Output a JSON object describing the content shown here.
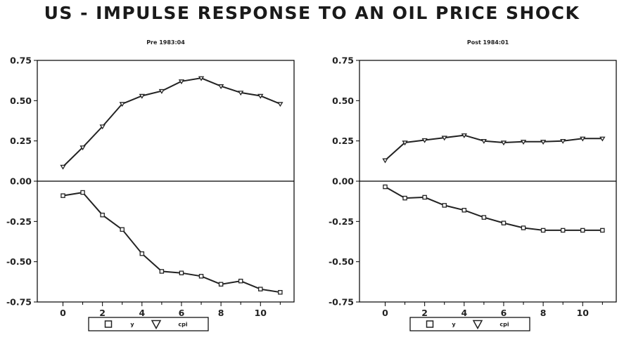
{
  "title": "US - IMPULSE RESPONSE TO AN OIL PRICE SHOCK",
  "chart_data": [
    {
      "type": "line",
      "title": "Pre 1983:04",
      "xlabel": "",
      "ylabel": "",
      "x": [
        0,
        1,
        2,
        3,
        4,
        5,
        6,
        7,
        8,
        9,
        10,
        11
      ],
      "xlim": [
        -1.3,
        11.7
      ],
      "ylim": [
        -0.75,
        0.75
      ],
      "x_ticks": [
        "0",
        "2",
        "4",
        "6",
        "8",
        "10"
      ],
      "y_ticks": [
        "0.75",
        "0.50",
        "0.25",
        "0.00",
        "-0.25",
        "-0.50",
        "-0.75"
      ],
      "zero_line": true,
      "series": [
        {
          "name": "y",
          "marker": "square",
          "values": [
            -0.09,
            -0.07,
            -0.21,
            -0.3,
            -0.45,
            -0.56,
            -0.57,
            -0.59,
            -0.64,
            -0.62,
            -0.67,
            -0.69
          ]
        },
        {
          "name": "cpi",
          "marker": "triangle",
          "values": [
            0.09,
            0.21,
            0.34,
            0.48,
            0.53,
            0.56,
            0.62,
            0.64,
            0.59,
            0.55,
            0.53,
            0.48
          ]
        }
      ],
      "legend": [
        "y",
        "cpi"
      ],
      "legend_position": "bottom-center"
    },
    {
      "type": "line",
      "title": "Post 1984:01",
      "xlabel": "",
      "ylabel": "",
      "x": [
        0,
        1,
        2,
        3,
        4,
        5,
        6,
        7,
        8,
        9,
        10,
        11
      ],
      "xlim": [
        -1.3,
        11.7
      ],
      "ylim": [
        -0.75,
        0.75
      ],
      "x_ticks": [
        "0",
        "2",
        "4",
        "6",
        "8",
        "10"
      ],
      "y_ticks": [
        "0.75",
        "0.50",
        "0.25",
        "0.00",
        "-0.25",
        "-0.50",
        "-0.75"
      ],
      "zero_line": true,
      "series": [
        {
          "name": "y",
          "marker": "square",
          "values": [
            -0.035,
            -0.105,
            -0.1,
            -0.15,
            -0.18,
            -0.225,
            -0.26,
            -0.29,
            -0.305,
            -0.305,
            -0.305,
            -0.305
          ]
        },
        {
          "name": "cpi",
          "marker": "triangle",
          "values": [
            0.13,
            0.24,
            0.255,
            0.27,
            0.285,
            0.25,
            0.24,
            0.245,
            0.245,
            0.25,
            0.265,
            0.265
          ]
        }
      ],
      "legend": [
        "y",
        "cpi"
      ],
      "legend_position": "bottom-center"
    }
  ]
}
